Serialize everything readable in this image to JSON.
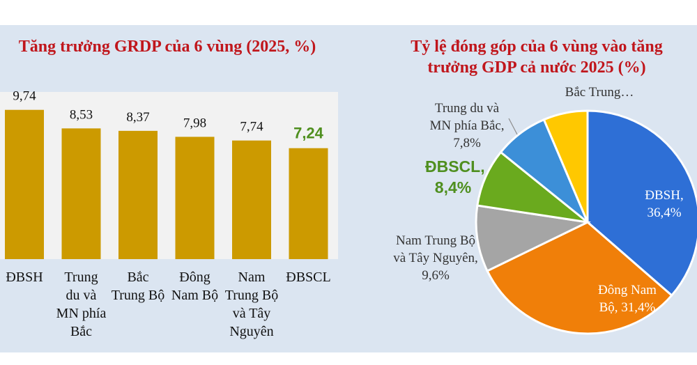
{
  "chart_data": [
    {
      "type": "bar",
      "title": "Tăng trưởng GRDP của 6 vùng (2025, %)",
      "categories": [
        "ĐBSH",
        "Trung du và MN phía Bắc",
        "Bắc Trung Bộ",
        "Đông Nam Bộ",
        "Nam Trung Bộ và Tây Nguyên",
        "ĐBSCL"
      ],
      "category_lines": [
        [
          "ĐBSH"
        ],
        [
          "Trung",
          "du và",
          "MN phía",
          "Bắc"
        ],
        [
          "Bắc",
          "Trung Bộ"
        ],
        [
          "Đông",
          "Nam Bộ"
        ],
        [
          "Nam",
          "Trung Bộ",
          "và Tây",
          "Nguyên"
        ],
        [
          "ĐBSCL"
        ]
      ],
      "values": [
        9.74,
        8.53,
        8.37,
        7.98,
        7.74,
        7.24
      ],
      "value_labels": [
        "9,74",
        "8,53",
        "8,37",
        "7,98",
        "7,74",
        "7,24"
      ],
      "highlight_index": 5,
      "ylim": [
        0,
        11
      ],
      "grid": false,
      "colors": {
        "bar": "#cc9a00",
        "label": "#111111",
        "highlight_label": "#4f8f1f"
      }
    },
    {
      "type": "pie",
      "title": "Tỷ lệ đóng góp của 6 vùng vào tăng trưởng GDP cả nước 2025 (%)",
      "slices": [
        {
          "name": "ĐBSH",
          "value": 36.4,
          "label_lines": [
            "ĐBSH,",
            "36,4%"
          ],
          "color": "#2e6fd6"
        },
        {
          "name": "Đông Nam Bộ",
          "value": 31.4,
          "label_lines": [
            "Đông Nam",
            "Bộ, 31,4%"
          ],
          "color": "#f07f09"
        },
        {
          "name": "Nam Trung Bộ và Tây Nguyên",
          "value": 9.6,
          "label_lines": [
            "Nam Trung Bộ",
            "và Tây Nguyên,",
            "9,6%"
          ],
          "color": "#a5a5a5"
        },
        {
          "name": "ĐBSCL",
          "value": 8.4,
          "label_lines": [
            "ĐBSCL,",
            "8,4%"
          ],
          "color": "#6aaa1e"
        },
        {
          "name": "Trung du và MN phía Bắc",
          "value": 7.8,
          "label_lines": [
            "Trung du và",
            "MN phía Bắc,",
            "7,8%"
          ],
          "color": "#3c8fd8"
        },
        {
          "name": "Bắc Trung Bộ",
          "value": 6.4,
          "label_lines": [
            "Bắc Trung…"
          ],
          "color": "#ffc800"
        }
      ]
    }
  ]
}
